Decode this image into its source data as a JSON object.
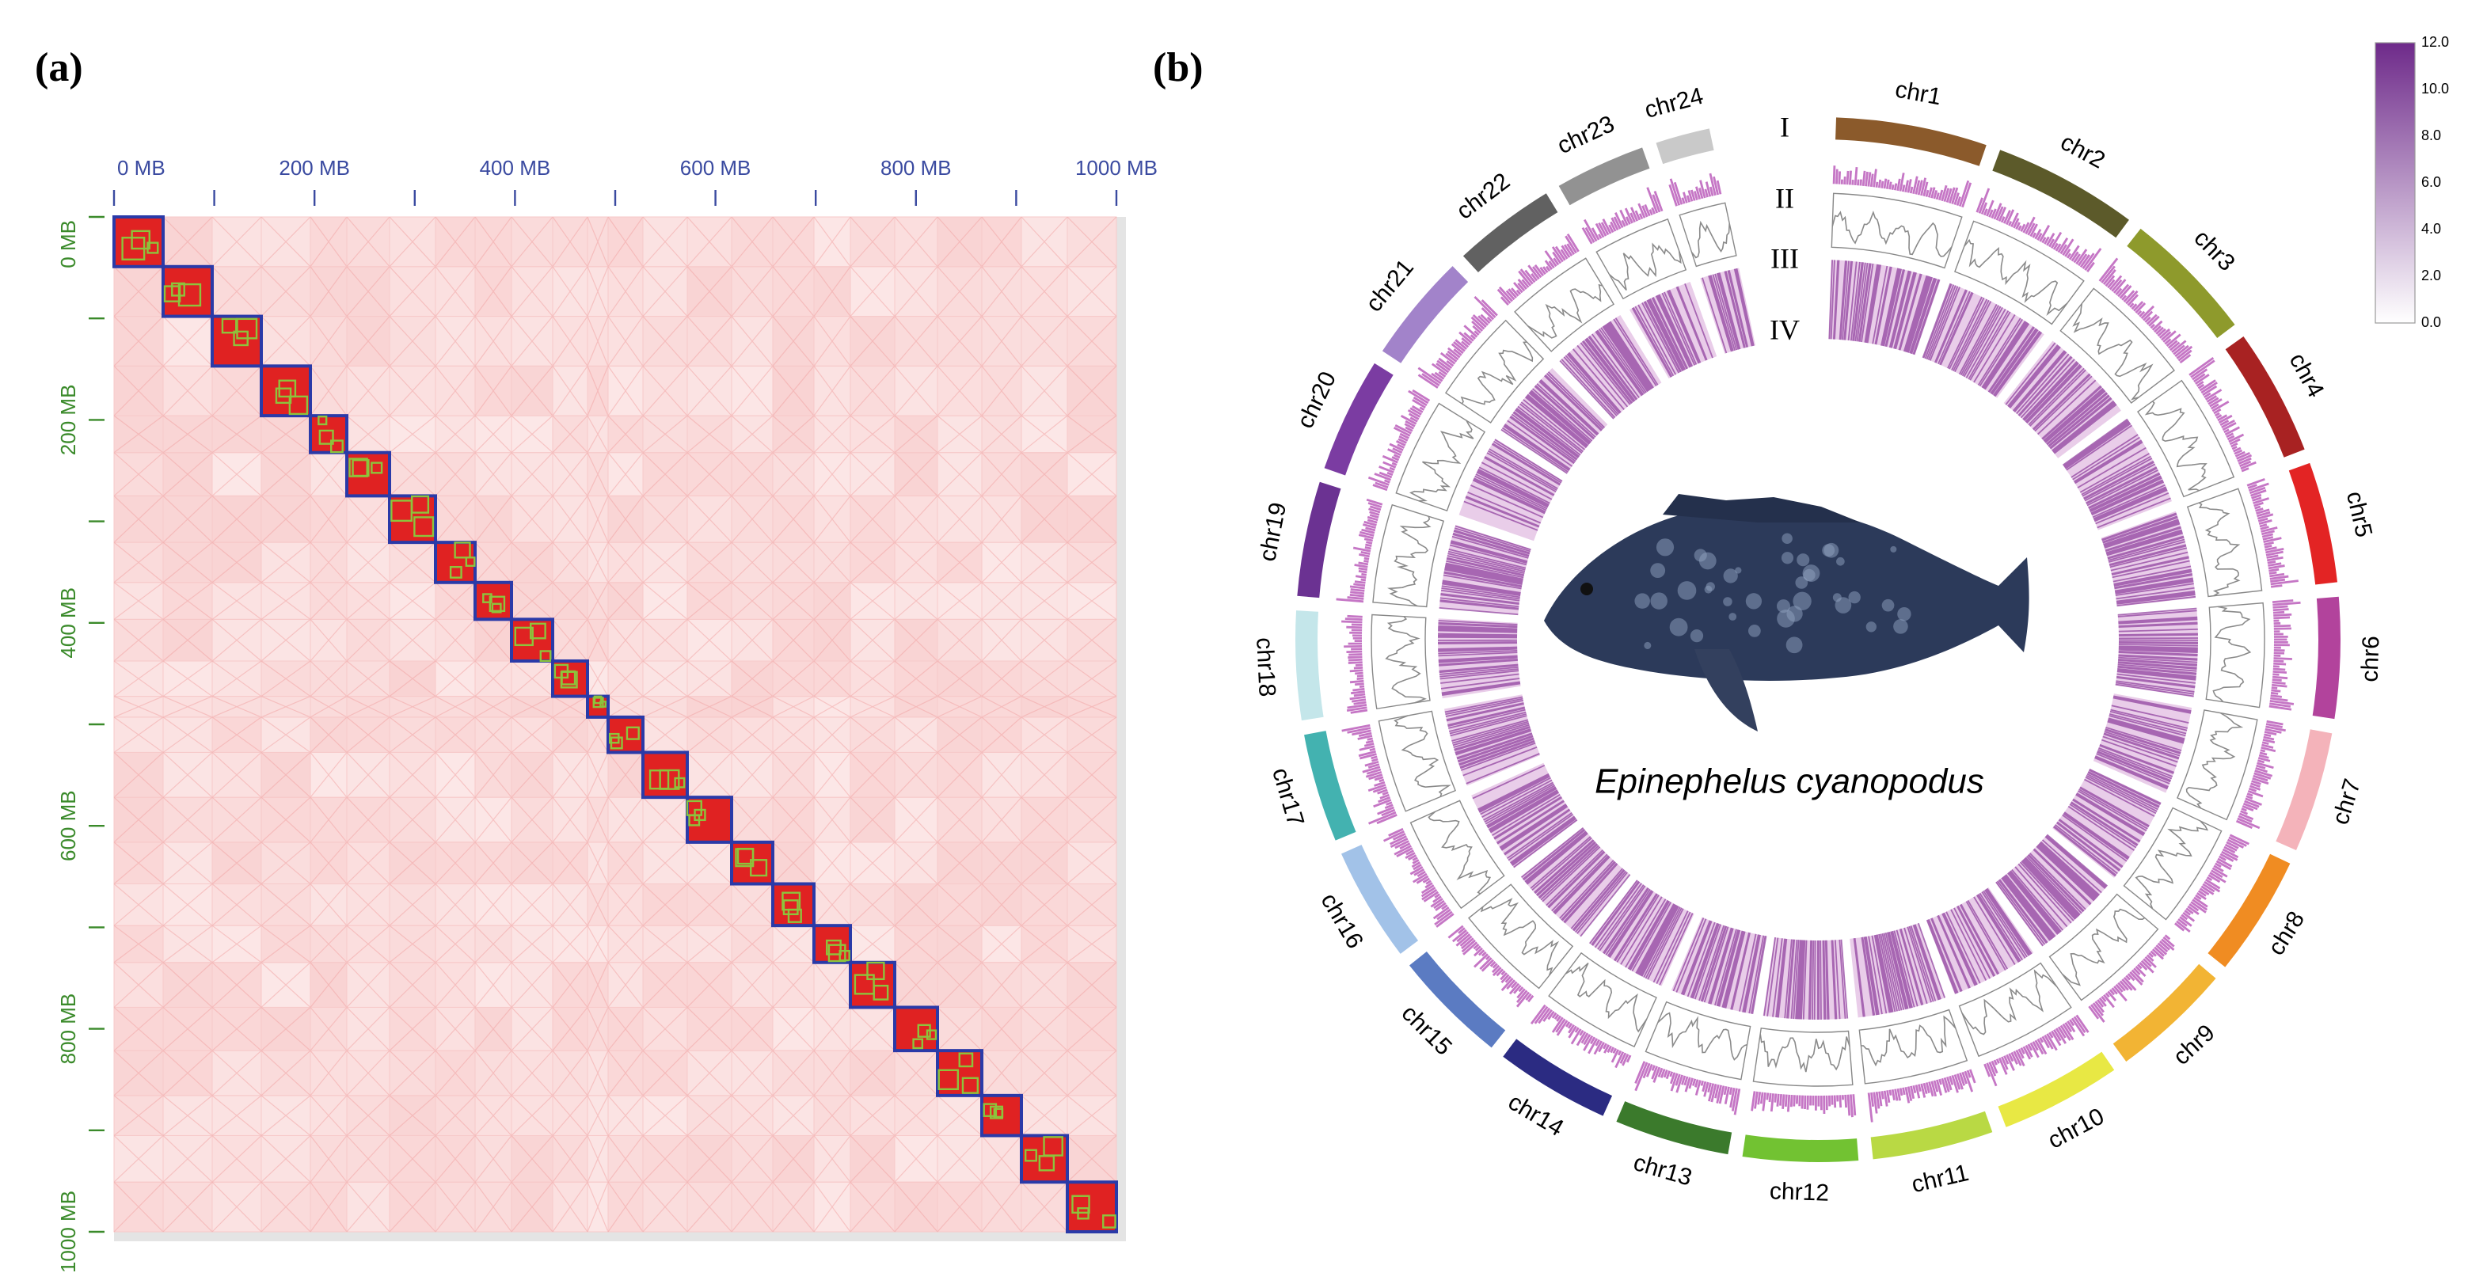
{
  "panel_a": {
    "label": "(a)",
    "x_ticks": [
      "0 MB",
      "200 MB",
      "400 MB",
      "600 MB",
      "800 MB",
      "1000 MB"
    ],
    "y_ticks": [
      "0 MB",
      "200 MB",
      "400 MB",
      "600 MB",
      "800 MB",
      "1000 MB"
    ]
  },
  "panel_b": {
    "label": "(b)",
    "species": "Epinephelus cyanopodus",
    "tracks": [
      "I",
      "II",
      "III",
      "IV"
    ],
    "colorbar_ticks": [
      "12.0",
      "10.0",
      "8.0",
      "6.0",
      "4.0",
      "2.0",
      "0.0"
    ],
    "chromosomes": [
      {
        "name": "chr1",
        "color": "#8b5a2b"
      },
      {
        "name": "chr2",
        "color": "#5c5a2a"
      },
      {
        "name": "chr3",
        "color": "#8e9a2c"
      },
      {
        "name": "chr4",
        "color": "#a82222"
      },
      {
        "name": "chr5",
        "color": "#e32424"
      },
      {
        "name": "chr6",
        "color": "#b2439c"
      },
      {
        "name": "chr7",
        "color": "#f4b3ba"
      },
      {
        "name": "chr8",
        "color": "#f08c22"
      },
      {
        "name": "chr9",
        "color": "#f2b434"
      },
      {
        "name": "chr10",
        "color": "#e8e844"
      },
      {
        "name": "chr11",
        "color": "#b9d944"
      },
      {
        "name": "chr12",
        "color": "#72c232"
      },
      {
        "name": "chr13",
        "color": "#3b7a2c"
      },
      {
        "name": "chr14",
        "color": "#2b2b82"
      },
      {
        "name": "chr15",
        "color": "#5b7bc2"
      },
      {
        "name": "chr16",
        "color": "#a2c2e8"
      },
      {
        "name": "chr17",
        "color": "#43b2b0"
      },
      {
        "name": "chr18",
        "color": "#c4e6ea"
      },
      {
        "name": "chr19",
        "color": "#6b3292"
      },
      {
        "name": "chr20",
        "color": "#7b3ca2"
      },
      {
        "name": "chr21",
        "color": "#a283ca"
      },
      {
        "name": "chr22",
        "color": "#616161"
      },
      {
        "name": "chr23",
        "color": "#929292"
      },
      {
        "name": "chr24",
        "color": "#c9c9c9"
      }
    ]
  }
}
